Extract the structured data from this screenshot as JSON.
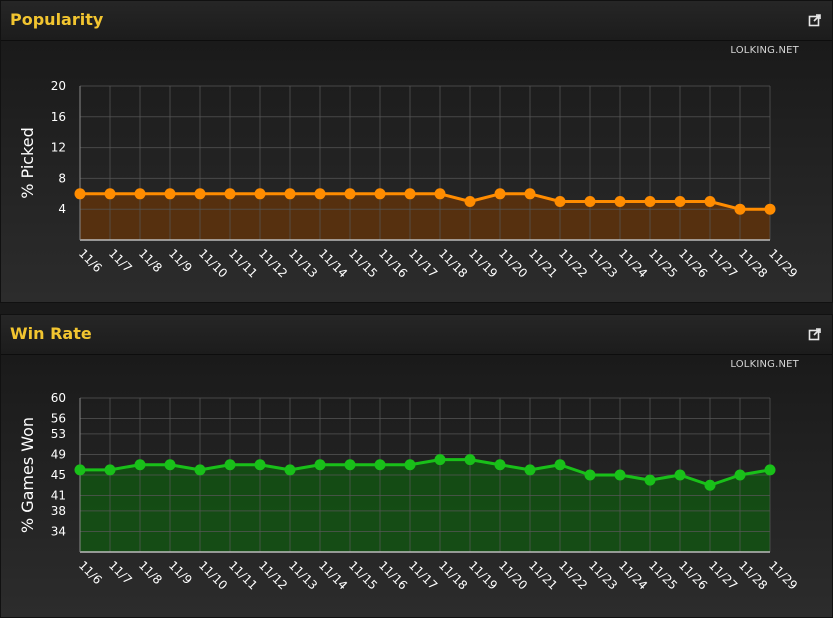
{
  "panels": [
    {
      "title": "Popularity",
      "source": "LOLKING.NET",
      "external_icon": "external-link-icon"
    },
    {
      "title": "Win Rate",
      "source": "LOLKING.NET",
      "external_icon": "external-link-icon"
    }
  ],
  "chart_data": [
    {
      "type": "area",
      "title": "Popularity",
      "ylabel": "% Picked",
      "xlabel": "",
      "ylim": [
        0,
        20
      ],
      "yticks": [
        4,
        8,
        12,
        16,
        20
      ],
      "x": [
        "11/6",
        "11/7",
        "11/8",
        "11/9",
        "11/10",
        "11/11",
        "11/12",
        "11/13",
        "11/14",
        "11/15",
        "11/16",
        "11/17",
        "11/18",
        "11/19",
        "11/20",
        "11/21",
        "11/22",
        "11/23",
        "11/24",
        "11/25",
        "11/26",
        "11/27",
        "11/28",
        "11/29"
      ],
      "series": [
        {
          "values": [
            6,
            6,
            6,
            6,
            6,
            6,
            6,
            6,
            6,
            6,
            6,
            6,
            6,
            5,
            6,
            6,
            5,
            5,
            5,
            5,
            5,
            5,
            4,
            4
          ]
        }
      ],
      "grid": true,
      "colors": {
        "line": "#ff8c00",
        "fill": "#5a310d"
      }
    },
    {
      "type": "area",
      "title": "Win Rate",
      "ylabel": "% Games Won",
      "xlabel": "",
      "ylim": [
        30,
        60
      ],
      "yticks": [
        34,
        38,
        41,
        45,
        49,
        53,
        56,
        60
      ],
      "x": [
        "11/6",
        "11/7",
        "11/8",
        "11/9",
        "11/10",
        "11/11",
        "11/12",
        "11/13",
        "11/14",
        "11/15",
        "11/16",
        "11/17",
        "11/18",
        "11/19",
        "11/20",
        "11/21",
        "11/22",
        "11/23",
        "11/24",
        "11/25",
        "11/26",
        "11/27",
        "11/28",
        "11/29"
      ],
      "series": [
        {
          "values": [
            46,
            46,
            47,
            47,
            46,
            47,
            47,
            46,
            47,
            47,
            47,
            47,
            48,
            48,
            47,
            46,
            47,
            45,
            45,
            44,
            45,
            43,
            45,
            46
          ]
        }
      ],
      "grid": true,
      "colors": {
        "line": "#19c019",
        "fill": "#134f13"
      }
    }
  ]
}
